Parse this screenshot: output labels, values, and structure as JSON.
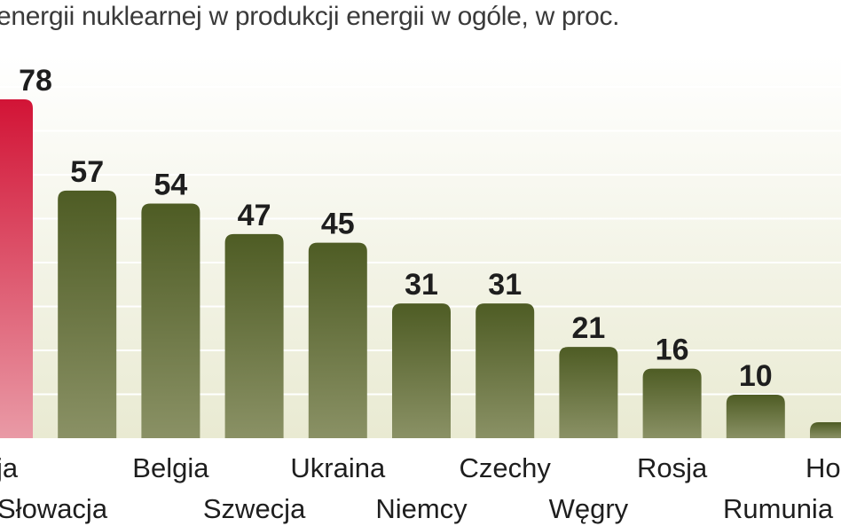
{
  "title": "energii nuklearnej w produkcji energii w ogóle, w proc.",
  "colors": {
    "highlight_bar": "#d01a3c",
    "bar": "#5f6d2e",
    "highlight_value": "#c8173a",
    "value": "#1e1e1e",
    "background_top": "#ffffff",
    "background_bottom": "#e9ead2",
    "gridline": "#ffffff"
  },
  "chart_data": {
    "type": "bar",
    "title": "energii nuklearnej w produkcji energii w ogóle, w proc.",
    "xlabel": "",
    "ylabel": "",
    "grid": true,
    "categories": [
      "ja",
      "Słowacja",
      "Belgia",
      "Szwecja",
      "Ukraina",
      "Niemcy",
      "Czechy",
      "Węgry",
      "Rosja",
      "Rumunia",
      "Ho"
    ],
    "values": [
      78,
      57,
      54,
      47,
      45,
      31,
      31,
      21,
      16,
      10,
      null
    ],
    "value_labels": [
      "78",
      "57",
      "54",
      "47",
      "45",
      "31",
      "31",
      "21",
      "16",
      "10",
      ""
    ],
    "highlighted": [
      true,
      false,
      false,
      false,
      false,
      false,
      false,
      false,
      false,
      false,
      false
    ],
    "ylim": [
      0,
      78
    ]
  }
}
